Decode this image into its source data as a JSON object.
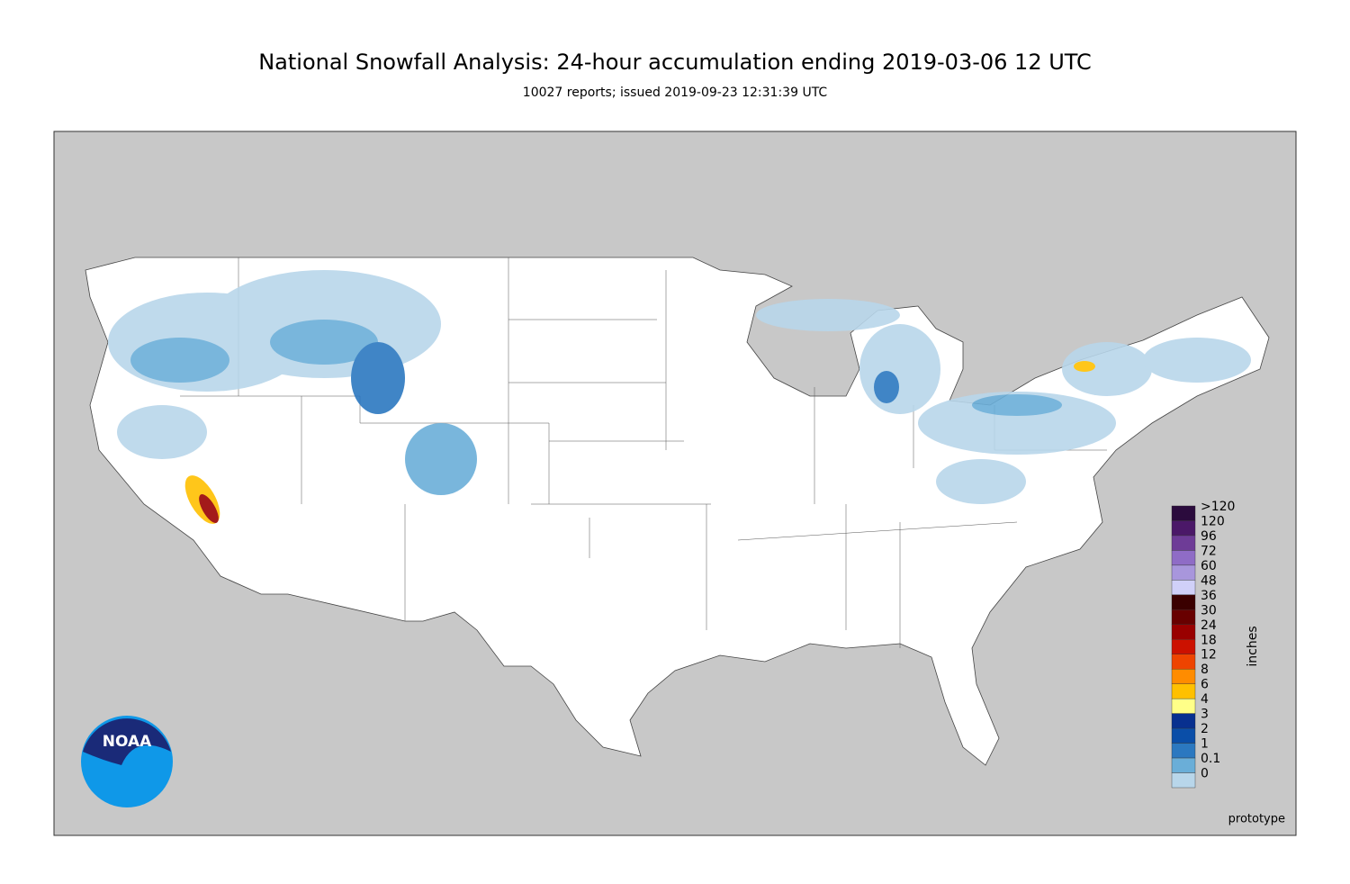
{
  "header": {
    "title": "National Snowfall Analysis: 24-hour accumulation ending 2019-03-06 12 UTC",
    "subtitle": "10027 reports; issued 2019-09-23 12:31:39 UTC"
  },
  "legend": {
    "unit": "inches",
    "items": [
      {
        "label": ">120",
        "color": "#2b0b3d"
      },
      {
        "label": "120",
        "color": "#4b1868"
      },
      {
        "label": "96",
        "color": "#6e3c97"
      },
      {
        "label": "72",
        "color": "#8f6cc6"
      },
      {
        "label": "60",
        "color": "#a896dc"
      },
      {
        "label": "48",
        "color": "#d0d0f8"
      },
      {
        "label": "36",
        "color": "#3a0000"
      },
      {
        "label": "30",
        "color": "#680000"
      },
      {
        "label": "24",
        "color": "#990000"
      },
      {
        "label": "18",
        "color": "#cc1100"
      },
      {
        "label": "12",
        "color": "#ee4400"
      },
      {
        "label": "8",
        "color": "#ff8c00"
      },
      {
        "label": "6",
        "color": "#ffc000"
      },
      {
        "label": "4",
        "color": "#ffff88"
      },
      {
        "label": "3",
        "color": "#08308f"
      },
      {
        "label": "2",
        "color": "#0a4ea8"
      },
      {
        "label": "1",
        "color": "#2b78c0"
      },
      {
        "label": "0.1",
        "color": "#6aaed8"
      },
      {
        "label": "0",
        "color": "#b8d6ea"
      }
    ]
  },
  "logo": {
    "text": "NOAA"
  },
  "note": "prototype"
}
